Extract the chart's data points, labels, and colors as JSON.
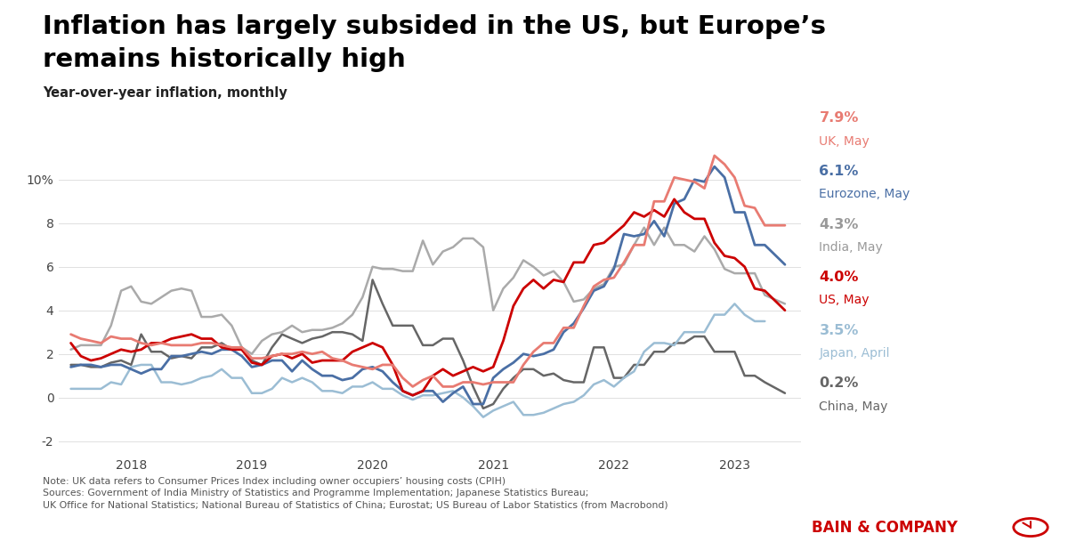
{
  "title_line1": "Inflation has largely subsided in the US, but Europe’s",
  "title_line2": "remains historically high",
  "subtitle": "Year-over-year inflation, monthly",
  "ylim": [
    -2.5,
    11.2
  ],
  "ytick_vals": [
    -2,
    0,
    2,
    4,
    6,
    8,
    10
  ],
  "ytick_labels": [
    "-2",
    "0",
    "2",
    "4",
    "6",
    "8",
    "10%"
  ],
  "note": "Note: UK data refers to Consumer Prices Index including owner occupiers’ housing costs (CPIH)\nSources: Government of India Ministry of Statistics and Programme Implementation; Japanese Statistics Bureau;\nUK Office for National Statistics; National Bureau of Statistics of China; Eurostat; US Bureau of Labor Statistics (from Macrobond)",
  "bain_text": "BAIN & COMPANY",
  "legend_entries": [
    {
      "pct": "7.9%",
      "label": "UK, May",
      "pct_color": "#e87b72",
      "label_color": "#e87b72"
    },
    {
      "pct": "6.1%",
      "label": "Eurozone, May",
      "pct_color": "#4a6fa5",
      "label_color": "#4a6fa5"
    },
    {
      "pct": "4.3%",
      "label": "India, May",
      "pct_color": "#999999",
      "label_color": "#999999"
    },
    {
      "pct": "4.0%",
      "label": "US, May",
      "pct_color": "#cc0000",
      "label_color": "#cc0000"
    },
    {
      "pct": "3.5%",
      "label": "Japan, April",
      "pct_color": "#9bbdd4",
      "label_color": "#9bbdd4"
    },
    {
      "pct": "0.2%",
      "label": "China, May",
      "pct_color": "#666666",
      "label_color": "#666666"
    }
  ],
  "series": {
    "UK": {
      "color": "#e87b72",
      "lw": 2.0,
      "x": [
        2017.5,
        2017.583,
        2017.667,
        2017.75,
        2017.833,
        2017.917,
        2018.0,
        2018.083,
        2018.167,
        2018.25,
        2018.333,
        2018.417,
        2018.5,
        2018.583,
        2018.667,
        2018.75,
        2018.833,
        2018.917,
        2019.0,
        2019.083,
        2019.167,
        2019.25,
        2019.333,
        2019.417,
        2019.5,
        2019.583,
        2019.667,
        2019.75,
        2019.833,
        2019.917,
        2020.0,
        2020.083,
        2020.167,
        2020.25,
        2020.333,
        2020.417,
        2020.5,
        2020.583,
        2020.667,
        2020.75,
        2020.833,
        2020.917,
        2021.0,
        2021.083,
        2021.167,
        2021.25,
        2021.333,
        2021.417,
        2021.5,
        2021.583,
        2021.667,
        2021.75,
        2021.833,
        2021.917,
        2022.0,
        2022.083,
        2022.167,
        2022.25,
        2022.333,
        2022.417,
        2022.5,
        2022.583,
        2022.667,
        2022.75,
        2022.833,
        2022.917,
        2023.0,
        2023.083,
        2023.167,
        2023.25,
        2023.417
      ],
      "y": [
        2.9,
        2.7,
        2.6,
        2.5,
        2.8,
        2.7,
        2.7,
        2.5,
        2.4,
        2.5,
        2.4,
        2.4,
        2.4,
        2.5,
        2.5,
        2.4,
        2.3,
        2.3,
        1.8,
        1.8,
        1.9,
        2.0,
        2.0,
        2.1,
        2.0,
        2.1,
        1.8,
        1.7,
        1.5,
        1.4,
        1.3,
        1.5,
        1.5,
        0.9,
        0.5,
        0.8,
        1.0,
        0.5,
        0.5,
        0.7,
        0.7,
        0.6,
        0.7,
        0.7,
        0.7,
        1.5,
        2.1,
        2.5,
        2.5,
        3.2,
        3.2,
        4.2,
        5.1,
        5.4,
        5.5,
        6.2,
        7.0,
        7.0,
        9.0,
        9.0,
        10.1,
        10.0,
        9.9,
        9.6,
        11.1,
        10.7,
        10.1,
        8.8,
        8.7,
        7.9,
        7.9
      ]
    },
    "Eurozone": {
      "color": "#4a6fa5",
      "lw": 2.0,
      "x": [
        2017.5,
        2017.583,
        2017.667,
        2017.75,
        2017.833,
        2017.917,
        2018.0,
        2018.083,
        2018.167,
        2018.25,
        2018.333,
        2018.417,
        2018.5,
        2018.583,
        2018.667,
        2018.75,
        2018.833,
        2018.917,
        2019.0,
        2019.083,
        2019.167,
        2019.25,
        2019.333,
        2019.417,
        2019.5,
        2019.583,
        2019.667,
        2019.75,
        2019.833,
        2019.917,
        2020.0,
        2020.083,
        2020.167,
        2020.25,
        2020.333,
        2020.417,
        2020.5,
        2020.583,
        2020.667,
        2020.75,
        2020.833,
        2020.917,
        2021.0,
        2021.083,
        2021.167,
        2021.25,
        2021.333,
        2021.417,
        2021.5,
        2021.583,
        2021.667,
        2021.75,
        2021.833,
        2021.917,
        2022.0,
        2022.083,
        2022.167,
        2022.25,
        2022.333,
        2022.417,
        2022.5,
        2022.583,
        2022.667,
        2022.75,
        2022.833,
        2022.917,
        2023.0,
        2023.083,
        2023.167,
        2023.25,
        2023.417
      ],
      "y": [
        1.4,
        1.5,
        1.5,
        1.4,
        1.5,
        1.5,
        1.3,
        1.1,
        1.3,
        1.3,
        1.9,
        1.9,
        2.0,
        2.1,
        2.0,
        2.2,
        2.2,
        1.9,
        1.4,
        1.5,
        1.7,
        1.7,
        1.2,
        1.7,
        1.3,
        1.0,
        1.0,
        0.8,
        0.9,
        1.3,
        1.4,
        1.2,
        0.7,
        0.3,
        0.1,
        0.3,
        0.3,
        -0.2,
        0.2,
        0.5,
        -0.3,
        -0.3,
        0.9,
        1.3,
        1.6,
        2.0,
        1.9,
        2.0,
        2.2,
        3.0,
        3.4,
        4.1,
        4.9,
        5.1,
        5.9,
        7.5,
        7.4,
        7.5,
        8.1,
        7.4,
        8.9,
        9.1,
        10.0,
        9.9,
        10.6,
        10.1,
        8.5,
        8.5,
        7.0,
        7.0,
        6.1
      ]
    },
    "India": {
      "color": "#aaaaaa",
      "lw": 1.8,
      "x": [
        2017.5,
        2017.583,
        2017.667,
        2017.75,
        2017.833,
        2017.917,
        2018.0,
        2018.083,
        2018.167,
        2018.25,
        2018.333,
        2018.417,
        2018.5,
        2018.583,
        2018.667,
        2018.75,
        2018.833,
        2018.917,
        2019.0,
        2019.083,
        2019.167,
        2019.25,
        2019.333,
        2019.417,
        2019.5,
        2019.583,
        2019.667,
        2019.75,
        2019.833,
        2019.917,
        2020.0,
        2020.083,
        2020.167,
        2020.25,
        2020.333,
        2020.417,
        2020.5,
        2020.583,
        2020.667,
        2020.75,
        2020.833,
        2020.917,
        2021.0,
        2021.083,
        2021.167,
        2021.25,
        2021.333,
        2021.417,
        2021.5,
        2021.583,
        2021.667,
        2021.75,
        2021.833,
        2021.917,
        2022.0,
        2022.083,
        2022.167,
        2022.25,
        2022.333,
        2022.417,
        2022.5,
        2022.583,
        2022.667,
        2022.75,
        2022.833,
        2022.917,
        2023.0,
        2023.083,
        2023.167,
        2023.25,
        2023.417
      ],
      "y": [
        2.2,
        2.4,
        2.4,
        2.4,
        3.3,
        4.9,
        5.1,
        4.4,
        4.3,
        4.6,
        4.9,
        5.0,
        4.9,
        3.7,
        3.7,
        3.8,
        3.3,
        2.3,
        2.0,
        2.6,
        2.9,
        3.0,
        3.3,
        3.0,
        3.1,
        3.1,
        3.2,
        3.4,
        3.8,
        4.6,
        6.0,
        5.9,
        5.9,
        5.8,
        5.8,
        7.2,
        6.1,
        6.7,
        6.9,
        7.3,
        7.3,
        6.9,
        4.0,
        5.0,
        5.5,
        6.3,
        6.0,
        5.6,
        5.8,
        5.3,
        4.4,
        4.5,
        5.0,
        5.2,
        6.0,
        6.1,
        7.0,
        7.8,
        7.0,
        7.8,
        7.0,
        7.0,
        6.7,
        7.4,
        6.8,
        5.9,
        5.7,
        5.7,
        5.7,
        4.7,
        4.3
      ]
    },
    "US": {
      "color": "#cc0000",
      "lw": 2.0,
      "x": [
        2017.5,
        2017.583,
        2017.667,
        2017.75,
        2017.833,
        2017.917,
        2018.0,
        2018.083,
        2018.167,
        2018.25,
        2018.333,
        2018.417,
        2018.5,
        2018.583,
        2018.667,
        2018.75,
        2018.833,
        2018.917,
        2019.0,
        2019.083,
        2019.167,
        2019.25,
        2019.333,
        2019.417,
        2019.5,
        2019.583,
        2019.667,
        2019.75,
        2019.833,
        2019.917,
        2020.0,
        2020.083,
        2020.167,
        2020.25,
        2020.333,
        2020.417,
        2020.5,
        2020.583,
        2020.667,
        2020.75,
        2020.833,
        2020.917,
        2021.0,
        2021.083,
        2021.167,
        2021.25,
        2021.333,
        2021.417,
        2021.5,
        2021.583,
        2021.667,
        2021.75,
        2021.833,
        2021.917,
        2022.0,
        2022.083,
        2022.167,
        2022.25,
        2022.333,
        2022.417,
        2022.5,
        2022.583,
        2022.667,
        2022.75,
        2022.833,
        2022.917,
        2023.0,
        2023.083,
        2023.167,
        2023.25,
        2023.417
      ],
      "y": [
        2.5,
        1.9,
        1.7,
        1.8,
        2.0,
        2.2,
        2.1,
        2.2,
        2.5,
        2.5,
        2.7,
        2.8,
        2.9,
        2.7,
        2.7,
        2.3,
        2.2,
        2.2,
        1.6,
        1.5,
        1.9,
        2.0,
        1.8,
        2.0,
        1.6,
        1.7,
        1.7,
        1.7,
        2.1,
        2.3,
        2.5,
        2.3,
        1.5,
        0.3,
        0.1,
        0.3,
        1.0,
        1.3,
        1.0,
        1.2,
        1.4,
        1.2,
        1.4,
        2.6,
        4.2,
        5.0,
        5.4,
        5.0,
        5.4,
        5.3,
        6.2,
        6.2,
        7.0,
        7.1,
        7.5,
        7.9,
        8.5,
        8.3,
        8.6,
        8.3,
        9.1,
        8.5,
        8.2,
        8.2,
        7.1,
        6.5,
        6.4,
        6.0,
        5.0,
        4.9,
        4.0
      ]
    },
    "Japan": {
      "color": "#9bbdd4",
      "lw": 1.8,
      "x": [
        2017.5,
        2017.583,
        2017.667,
        2017.75,
        2017.833,
        2017.917,
        2018.0,
        2018.083,
        2018.167,
        2018.25,
        2018.333,
        2018.417,
        2018.5,
        2018.583,
        2018.667,
        2018.75,
        2018.833,
        2018.917,
        2019.0,
        2019.083,
        2019.167,
        2019.25,
        2019.333,
        2019.417,
        2019.5,
        2019.583,
        2019.667,
        2019.75,
        2019.833,
        2019.917,
        2020.0,
        2020.083,
        2020.167,
        2020.25,
        2020.333,
        2020.417,
        2020.5,
        2020.583,
        2020.667,
        2020.75,
        2020.833,
        2020.917,
        2021.0,
        2021.083,
        2021.167,
        2021.25,
        2021.333,
        2021.417,
        2021.5,
        2021.583,
        2021.667,
        2021.75,
        2021.833,
        2021.917,
        2022.0,
        2022.083,
        2022.167,
        2022.25,
        2022.333,
        2022.417,
        2022.5,
        2022.583,
        2022.667,
        2022.75,
        2022.833,
        2022.917,
        2023.0,
        2023.083,
        2023.167,
        2023.25
      ],
      "y": [
        0.4,
        0.4,
        0.4,
        0.4,
        0.7,
        0.6,
        1.4,
        1.5,
        1.5,
        0.7,
        0.7,
        0.6,
        0.7,
        0.9,
        1.0,
        1.3,
        0.9,
        0.9,
        0.2,
        0.2,
        0.4,
        0.9,
        0.7,
        0.9,
        0.7,
        0.3,
        0.3,
        0.2,
        0.5,
        0.5,
        0.7,
        0.4,
        0.4,
        0.1,
        -0.1,
        0.1,
        0.1,
        0.2,
        0.3,
        0.0,
        -0.4,
        -0.9,
        -0.6,
        -0.4,
        -0.2,
        -0.8,
        -0.8,
        -0.7,
        -0.5,
        -0.3,
        -0.2,
        0.1,
        0.6,
        0.8,
        0.5,
        0.9,
        1.2,
        2.1,
        2.5,
        2.5,
        2.4,
        3.0,
        3.0,
        3.0,
        3.8,
        3.8,
        4.3,
        3.8,
        3.5,
        3.5
      ]
    },
    "China": {
      "color": "#666666",
      "lw": 1.8,
      "x": [
        2017.5,
        2017.583,
        2017.667,
        2017.75,
        2017.833,
        2017.917,
        2018.0,
        2018.083,
        2018.167,
        2018.25,
        2018.333,
        2018.417,
        2018.5,
        2018.583,
        2018.667,
        2018.75,
        2018.833,
        2018.917,
        2019.0,
        2019.083,
        2019.167,
        2019.25,
        2019.333,
        2019.417,
        2019.5,
        2019.583,
        2019.667,
        2019.75,
        2019.833,
        2019.917,
        2020.0,
        2020.083,
        2020.167,
        2020.25,
        2020.333,
        2020.417,
        2020.5,
        2020.583,
        2020.667,
        2020.75,
        2020.833,
        2020.917,
        2021.0,
        2021.083,
        2021.167,
        2021.25,
        2021.333,
        2021.417,
        2021.5,
        2021.583,
        2021.667,
        2021.75,
        2021.833,
        2021.917,
        2022.0,
        2022.083,
        2022.167,
        2022.25,
        2022.333,
        2022.417,
        2022.5,
        2022.583,
        2022.667,
        2022.75,
        2022.833,
        2022.917,
        2023.0,
        2023.083,
        2023.167,
        2023.25,
        2023.417
      ],
      "y": [
        1.5,
        1.5,
        1.4,
        1.4,
        1.6,
        1.7,
        1.5,
        2.9,
        2.1,
        2.1,
        1.8,
        1.9,
        1.8,
        2.3,
        2.3,
        2.5,
        2.2,
        2.2,
        1.7,
        1.5,
        2.3,
        2.9,
        2.7,
        2.5,
        2.7,
        2.8,
        3.0,
        3.0,
        2.9,
        2.6,
        5.4,
        4.3,
        3.3,
        3.3,
        3.3,
        2.4,
        2.4,
        2.7,
        2.7,
        1.7,
        0.5,
        -0.5,
        -0.3,
        0.4,
        0.9,
        1.3,
        1.3,
        1.0,
        1.1,
        0.8,
        0.7,
        0.7,
        2.3,
        2.3,
        0.9,
        0.9,
        1.5,
        1.5,
        2.1,
        2.1,
        2.5,
        2.5,
        2.8,
        2.8,
        2.1,
        2.1,
        2.1,
        1.0,
        1.0,
        0.7,
        0.2
      ]
    }
  }
}
